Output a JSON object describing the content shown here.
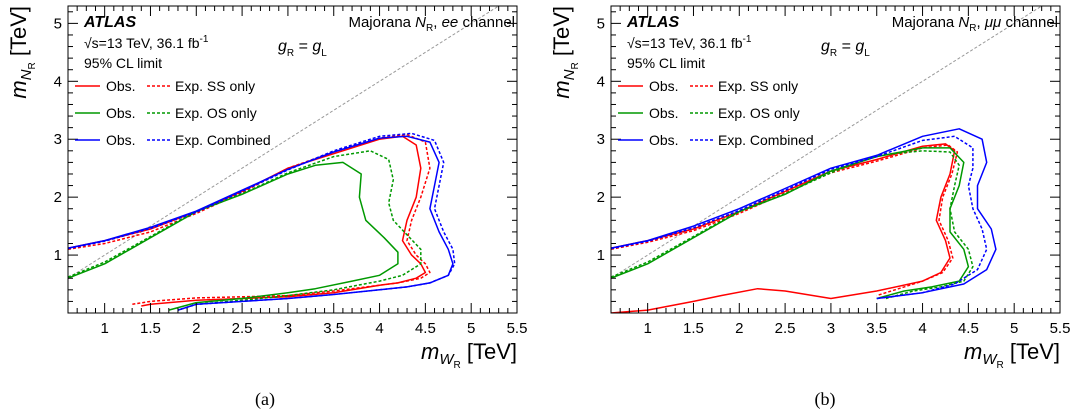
{
  "figure": {
    "caption_a": "(a)",
    "caption_b": "(b)"
  },
  "chart_data": [
    {
      "type": "line",
      "panel": "a",
      "xlabel": {
        "sym": "m",
        "sub": "W",
        "subsub": "R",
        "unit": "[TeV]"
      },
      "ylabel": {
        "sym": "m",
        "sub": "N",
        "subsub": "R",
        "unit": "[TeV]"
      },
      "xlim": [
        0.6,
        5.5
      ],
      "ylim": [
        0.0,
        5.3
      ],
      "xticks": [
        "1",
        "1.5",
        "2",
        "2.5",
        "3",
        "3.5",
        "4",
        "4.5",
        "5",
        "5.5"
      ],
      "yticks": [
        "1",
        "2",
        "3",
        "4",
        "5"
      ],
      "atlas_label": "ATLAS",
      "energy_text": "√s=13 TeV, 36.1 fb",
      "lumi_sup": "-1",
      "cl_text": "95% CL limit",
      "channel_text": {
        "prefix": "Majorana ",
        "sym": "N",
        "sub": "R",
        "sep": ", ",
        "chan": "ee",
        "suffix": " channel"
      },
      "coupling_text": {
        "lhs": "g",
        "lhs_sub": "R",
        "eq": " = ",
        "rhs": "g",
        "rhs_sub": "L"
      },
      "legend": [
        {
          "obs": "Obs.",
          "exp": "Exp. SS only",
          "color": "#ff0000"
        },
        {
          "obs": "Obs.",
          "exp": "Exp. OS only",
          "color": "#009900"
        },
        {
          "obs": "Obs.",
          "exp": "Exp. Combined",
          "color": "#0000ff"
        }
      ],
      "series": [
        {
          "color": "#ff0000",
          "dashed": false,
          "x": [
            0.6,
            1.0,
            1.5,
            2.0,
            2.5,
            3.0,
            3.5,
            4.0,
            4.25,
            4.4,
            4.45,
            4.4,
            4.3,
            4.25,
            4.35,
            4.45,
            4.5,
            4.4,
            4.2,
            4.0,
            3.5,
            3.0,
            2.5,
            2.0,
            1.5,
            1.4
          ],
          "y": [
            1.12,
            1.25,
            1.45,
            1.75,
            2.1,
            2.5,
            2.75,
            3.0,
            3.05,
            2.9,
            2.5,
            2.0,
            1.6,
            1.25,
            1.0,
            0.85,
            0.7,
            0.6,
            0.52,
            0.48,
            0.35,
            0.28,
            0.25,
            0.22,
            0.15,
            0.12
          ]
        },
        {
          "color": "#ff0000",
          "dashed": true,
          "x": [
            0.6,
            1.0,
            1.5,
            2.0,
            2.5,
            3.0,
            3.5,
            4.0,
            4.3,
            4.5,
            4.55,
            4.45,
            4.35,
            4.3,
            4.4,
            4.5,
            4.55,
            4.45,
            4.2,
            4.0,
            3.5,
            3.0,
            2.5,
            2.0,
            1.5,
            1.3
          ],
          "y": [
            1.1,
            1.2,
            1.4,
            1.72,
            2.08,
            2.5,
            2.78,
            3.02,
            3.08,
            2.95,
            2.5,
            2.0,
            1.6,
            1.25,
            1.0,
            0.85,
            0.7,
            0.6,
            0.52,
            0.48,
            0.38,
            0.3,
            0.28,
            0.26,
            0.2,
            0.15
          ]
        },
        {
          "color": "#009900",
          "dashed": false,
          "x": [
            0.6,
            1.0,
            1.5,
            2.0,
            2.5,
            3.0,
            3.3,
            3.6,
            3.8,
            3.78,
            3.85,
            4.05,
            4.2,
            4.2,
            4.0,
            3.7,
            3.3,
            3.0,
            2.5,
            2.0,
            1.7
          ],
          "y": [
            0.6,
            0.85,
            1.3,
            1.75,
            2.05,
            2.4,
            2.55,
            2.6,
            2.4,
            2.0,
            1.6,
            1.3,
            1.05,
            0.85,
            0.65,
            0.55,
            0.42,
            0.35,
            0.25,
            0.18,
            0.05
          ]
        },
        {
          "color": "#009900",
          "dashed": true,
          "x": [
            0.6,
            1.0,
            1.5,
            2.0,
            2.5,
            3.0,
            3.5,
            3.9,
            4.1,
            4.15,
            4.1,
            4.15,
            4.3,
            4.45,
            4.45,
            4.25,
            4.0,
            3.5,
            3.0,
            2.5,
            2.0,
            1.8
          ],
          "y": [
            0.62,
            0.88,
            1.32,
            1.76,
            2.06,
            2.42,
            2.7,
            2.8,
            2.65,
            2.3,
            1.9,
            1.6,
            1.35,
            1.1,
            0.85,
            0.65,
            0.55,
            0.4,
            0.3,
            0.22,
            0.15,
            0.05
          ]
        },
        {
          "color": "#0000ff",
          "dashed": false,
          "x": [
            0.6,
            1.0,
            1.5,
            2.0,
            2.5,
            3.0,
            3.5,
            4.0,
            4.3,
            4.55,
            4.65,
            4.6,
            4.55,
            4.65,
            4.75,
            4.8,
            4.75,
            4.55,
            4.3,
            4.0,
            3.5,
            3.0,
            2.5,
            2.0,
            1.8
          ],
          "y": [
            1.12,
            1.25,
            1.48,
            1.76,
            2.12,
            2.48,
            2.78,
            3.02,
            3.05,
            2.95,
            2.6,
            2.2,
            1.8,
            1.4,
            1.1,
            0.85,
            0.65,
            0.52,
            0.45,
            0.4,
            0.32,
            0.25,
            0.2,
            0.15,
            0.05
          ]
        },
        {
          "color": "#0000ff",
          "dashed": true,
          "x": [
            0.6,
            1.0,
            1.5,
            2.0,
            2.5,
            3.0,
            3.5,
            4.0,
            4.35,
            4.6,
            4.7,
            4.65,
            4.6,
            4.7,
            4.8,
            4.82,
            4.75,
            4.55,
            4.3,
            4.0,
            3.5,
            3.0,
            2.5,
            2.0,
            1.8
          ],
          "y": [
            1.11,
            1.24,
            1.46,
            1.74,
            2.1,
            2.47,
            2.8,
            3.05,
            3.1,
            2.98,
            2.6,
            2.2,
            1.8,
            1.4,
            1.1,
            0.85,
            0.65,
            0.52,
            0.45,
            0.4,
            0.32,
            0.25,
            0.2,
            0.15,
            0.05
          ]
        }
      ]
    },
    {
      "type": "line",
      "panel": "b",
      "xlabel": {
        "sym": "m",
        "sub": "W",
        "subsub": "R",
        "unit": "[TeV]"
      },
      "ylabel": {
        "sym": "m",
        "sub": "N",
        "subsub": "R",
        "unit": "[TeV]"
      },
      "xlim": [
        0.6,
        5.5
      ],
      "ylim": [
        0.0,
        5.3
      ],
      "xticks": [
        "1",
        "1.5",
        "2",
        "2.5",
        "3",
        "3.5",
        "4",
        "4.5",
        "5",
        "5.5"
      ],
      "yticks": [
        "1",
        "2",
        "3",
        "4",
        "5"
      ],
      "atlas_label": "ATLAS",
      "energy_text": "√s=13 TeV, 36.1 fb",
      "lumi_sup": "-1",
      "cl_text": "95% CL limit",
      "channel_text": {
        "prefix": "Majorana ",
        "sym": "N",
        "sub": "R",
        "sep": ", ",
        "chan": "μμ",
        "suffix": " channel"
      },
      "coupling_text": {
        "lhs": "g",
        "lhs_sub": "R",
        "eq": " = ",
        "rhs": "g",
        "rhs_sub": "L"
      },
      "legend": [
        {
          "obs": "Obs.",
          "exp": "Exp. SS only",
          "color": "#ff0000"
        },
        {
          "obs": "Obs.",
          "exp": "Exp. OS only",
          "color": "#009900"
        },
        {
          "obs": "Obs.",
          "exp": "Exp. Combined",
          "color": "#0000ff"
        }
      ],
      "series": [
        {
          "color": "#ff0000",
          "dashed": false,
          "x": [
            0.6,
            1.0,
            1.5,
            2.0,
            2.5,
            3.0,
            3.5,
            4.0,
            4.25,
            4.35,
            4.3,
            4.2,
            4.15,
            4.25,
            4.3,
            4.2,
            4.0,
            3.5,
            3.0,
            2.5,
            2.2,
            1.8,
            1.5,
            1.0,
            0.6
          ],
          "y": [
            1.12,
            1.25,
            1.45,
            1.75,
            2.1,
            2.45,
            2.65,
            2.88,
            2.92,
            2.8,
            2.4,
            2.0,
            1.6,
            1.25,
            0.95,
            0.7,
            0.55,
            0.38,
            0.25,
            0.38,
            0.42,
            0.3,
            0.2,
            0.05,
            0.0
          ]
        },
        {
          "color": "#ff0000",
          "dashed": true,
          "x": [
            0.6,
            1.0,
            1.5,
            2.0,
            2.5,
            3.0,
            3.5,
            4.0,
            4.28,
            4.38,
            4.32,
            4.22,
            4.18,
            4.28,
            4.33,
            4.22,
            4.0,
            3.5
          ],
          "y": [
            1.1,
            1.22,
            1.42,
            1.72,
            2.07,
            2.42,
            2.62,
            2.85,
            2.9,
            2.78,
            2.4,
            2.0,
            1.6,
            1.25,
            0.95,
            0.7,
            0.55,
            0.3
          ]
        },
        {
          "color": "#009900",
          "dashed": false,
          "x": [
            0.6,
            1.0,
            1.5,
            2.0,
            2.5,
            3.0,
            3.5,
            4.0,
            4.3,
            4.45,
            4.4,
            4.3,
            4.3,
            4.45,
            4.5,
            4.4,
            4.1,
            3.8,
            3.5
          ],
          "y": [
            0.6,
            0.85,
            1.3,
            1.75,
            2.05,
            2.45,
            2.7,
            2.85,
            2.85,
            2.6,
            2.2,
            1.8,
            1.4,
            1.1,
            0.8,
            0.55,
            0.45,
            0.38,
            0.25
          ]
        },
        {
          "color": "#009900",
          "dashed": true,
          "x": [
            0.6,
            1.0,
            1.5,
            2.0,
            2.5,
            3.0,
            3.5,
            4.0,
            4.3,
            4.4,
            4.35,
            4.3,
            4.35,
            4.5,
            4.55,
            4.45,
            4.2,
            3.9,
            3.6
          ],
          "y": [
            0.62,
            0.88,
            1.32,
            1.76,
            2.06,
            2.42,
            2.72,
            2.8,
            2.78,
            2.55,
            2.2,
            1.8,
            1.4,
            1.1,
            0.8,
            0.55,
            0.45,
            0.38,
            0.25
          ]
        },
        {
          "color": "#0000ff",
          "dashed": false,
          "x": [
            0.6,
            1.0,
            1.5,
            2.0,
            2.5,
            3.0,
            3.5,
            4.0,
            4.4,
            4.65,
            4.7,
            4.6,
            4.6,
            4.75,
            4.8,
            4.7,
            4.45,
            4.0,
            3.5
          ],
          "y": [
            1.12,
            1.25,
            1.5,
            1.8,
            2.15,
            2.5,
            2.72,
            3.05,
            3.18,
            3.0,
            2.6,
            2.2,
            1.8,
            1.45,
            1.1,
            0.75,
            0.5,
            0.35,
            0.25
          ]
        },
        {
          "color": "#0000ff",
          "dashed": true,
          "x": [
            0.6,
            1.0,
            1.5,
            2.0,
            2.5,
            3.0,
            3.5,
            4.0,
            4.35,
            4.55,
            4.55,
            4.5,
            4.55,
            4.65,
            4.7,
            4.6,
            4.35,
            4.0,
            3.5
          ],
          "y": [
            1.11,
            1.24,
            1.47,
            1.77,
            2.12,
            2.48,
            2.7,
            2.98,
            3.05,
            2.85,
            2.5,
            2.2,
            1.8,
            1.45,
            1.1,
            0.75,
            0.5,
            0.35,
            0.25
          ]
        }
      ]
    }
  ]
}
